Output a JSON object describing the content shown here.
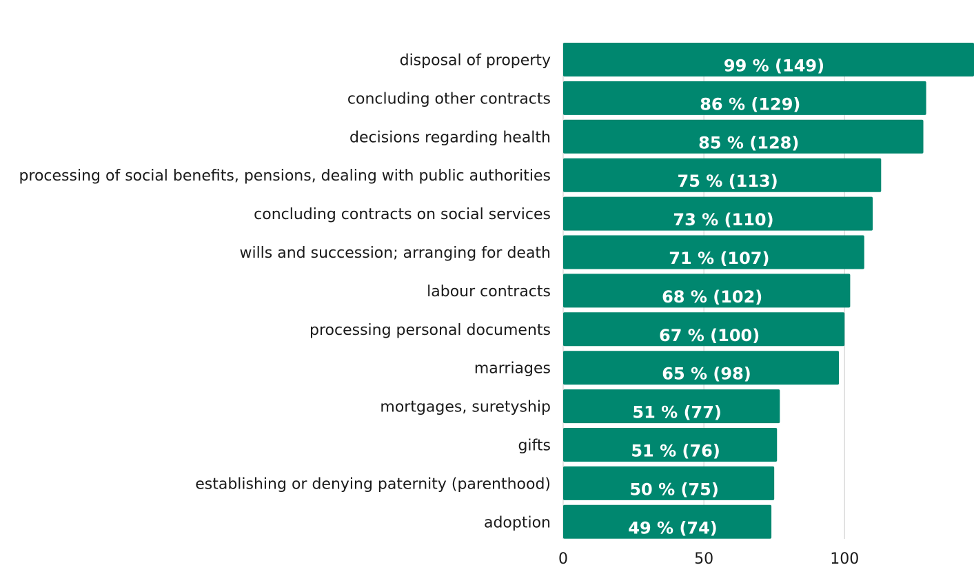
{
  "chart_data": {
    "type": "bar",
    "orientation": "horizontal",
    "categories": [
      "disposal of property",
      "concluding other contracts",
      "decisions regarding health",
      "processing of social benefits, pensions, dealing with public authorities",
      "concluding contracts on social services",
      "wills and succession; arranging for death",
      "labour contracts",
      "processing personal documents",
      "marriages",
      "mortgages, suretyship",
      "gifts",
      "establishing or denying paternity (parenthood)",
      "adoption"
    ],
    "values": [
      149,
      129,
      128,
      113,
      110,
      107,
      102,
      100,
      98,
      77,
      76,
      75,
      74
    ],
    "data_labels": [
      "99 % (149)",
      "86 % (129)",
      "85 % (128)",
      "75 % (113)",
      "73 % (110)",
      "71 % (107)",
      "68 % (102)",
      "67 % (100)",
      "65 % (98)",
      "51 % (77)",
      "51 % (76)",
      "50 % (75)",
      "49 % (74)"
    ],
    "x_ticks": [
      "0",
      "50",
      "100"
    ],
    "x_tick_values": [
      0,
      50,
      100
    ],
    "xlim": [
      0,
      146
    ],
    "title": "",
    "xlabel": "",
    "ylabel": "",
    "grid": true,
    "legend": "none",
    "bar_color": "#00876f",
    "gridline_color": "#cccccc"
  }
}
